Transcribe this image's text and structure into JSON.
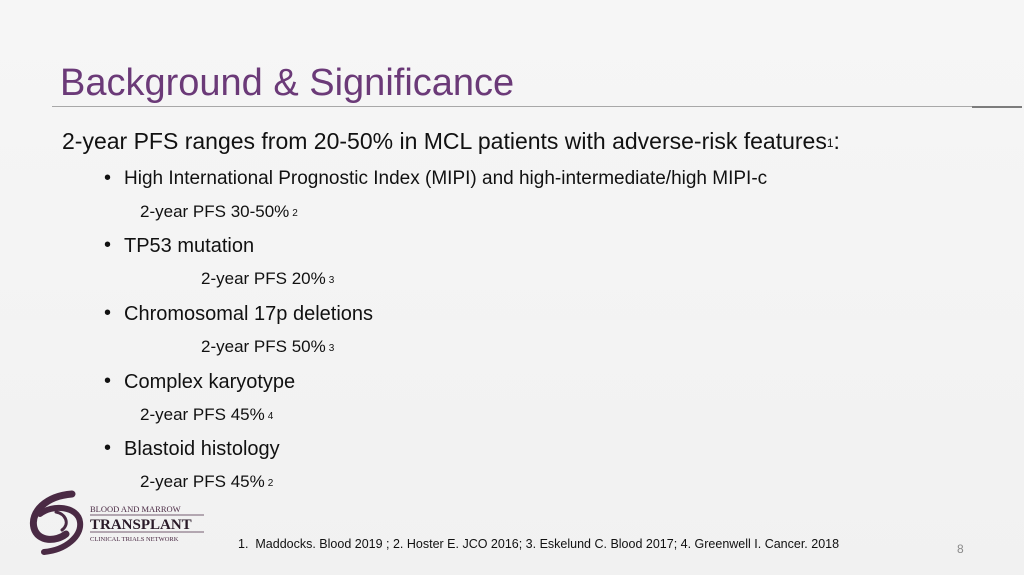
{
  "slide": {
    "title": "Background & Significance",
    "lead_text": "2-year PFS ranges from 20-50% in MCL patients with adverse-risk features",
    "lead_sup": "1",
    "lead_colon": ":",
    "bullet_glyph": "•",
    "items": [
      {
        "label": "High International Prognostic Index (MIPI) and high-intermediate/high MIPI-c",
        "sub": "2-year PFS 30-50%",
        "ref": "2"
      },
      {
        "label": "TP53 mutation",
        "sub": "2-year PFS 20%",
        "ref": "3"
      },
      {
        "label": "Chromosomal 17p deletions",
        "sub": "2-year PFS 50%",
        "ref": "3"
      },
      {
        "label": "Complex karyotype",
        "sub": "2-year PFS 45%",
        "ref": "4"
      },
      {
        "label": "Blastoid histology",
        "sub": "2-year PFS 45%",
        "ref": "2"
      }
    ],
    "footnote_num": "1.",
    "footnote": "Maddocks. Blood 2019 ; 2. Hoster E. JCO 2016; 3. Eskelund C. Blood 2017; 4. Greenwell I. Cancer. 2018",
    "page_number": "8"
  },
  "logo": {
    "line1": "BLOOD AND MARROW",
    "line2": "TRANSPLANT",
    "line3": "CLINICAL TRIALS NETWORK",
    "color": "#4a2a44"
  },
  "colors": {
    "title": "#6b3a78",
    "text": "#111111",
    "rule": "#a8a8a8"
  }
}
